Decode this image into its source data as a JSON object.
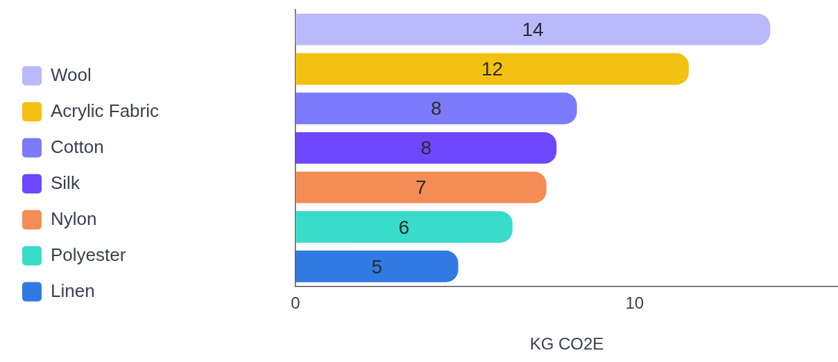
{
  "chart_data": {
    "type": "bar",
    "orientation": "horizontal",
    "xlabel": "KG CO2E",
    "categories": [
      null,
      null,
      null,
      null,
      null,
      null,
      null
    ],
    "series": [
      {
        "name": "Wool",
        "color": "#b9b9fc",
        "values": [
          14,
          null,
          null,
          null,
          null,
          null,
          null
        ],
        "value_labels": [
          "14",
          null,
          null,
          null,
          null,
          null,
          null
        ]
      },
      {
        "name": "Acrylic Fabric",
        "color": "#f2c112",
        "values": [
          null,
          11.6,
          null,
          null,
          null,
          null,
          null
        ],
        "value_labels": [
          null,
          "12",
          null,
          null,
          null,
          null,
          null
        ]
      },
      {
        "name": "Cotton",
        "color": "#7b7bfc",
        "values": [
          null,
          null,
          8.3,
          null,
          null,
          null,
          null
        ],
        "value_labels": [
          null,
          null,
          "8",
          null,
          null,
          null,
          null
        ]
      },
      {
        "name": "Silk",
        "color": "#6c47fd",
        "values": [
          null,
          null,
          null,
          7.7,
          null,
          null,
          null
        ],
        "value_labels": [
          null,
          null,
          null,
          "8",
          null,
          null,
          null
        ]
      },
      {
        "name": "Nylon",
        "color": "#f48c55",
        "values": [
          null,
          null,
          null,
          null,
          7.4,
          null,
          null
        ],
        "value_labels": [
          null,
          null,
          null,
          null,
          "7",
          null,
          null
        ]
      },
      {
        "name": "Polyester",
        "color": "#37dccb",
        "values": [
          null,
          null,
          null,
          null,
          null,
          6.4,
          null
        ],
        "value_labels": [
          null,
          null,
          null,
          null,
          null,
          "6",
          null
        ]
      },
      {
        "name": "Linen",
        "color": "#317ae2",
        "values": [
          null,
          null,
          null,
          null,
          null,
          null,
          4.8
        ],
        "value_labels": [
          null,
          null,
          null,
          null,
          null,
          null,
          "5"
        ]
      }
    ],
    "xlim": [
      0,
      16
    ],
    "xticks": [
      0,
      10
    ],
    "grid": false,
    "legend": "left",
    "tick_labels": "x"
  }
}
